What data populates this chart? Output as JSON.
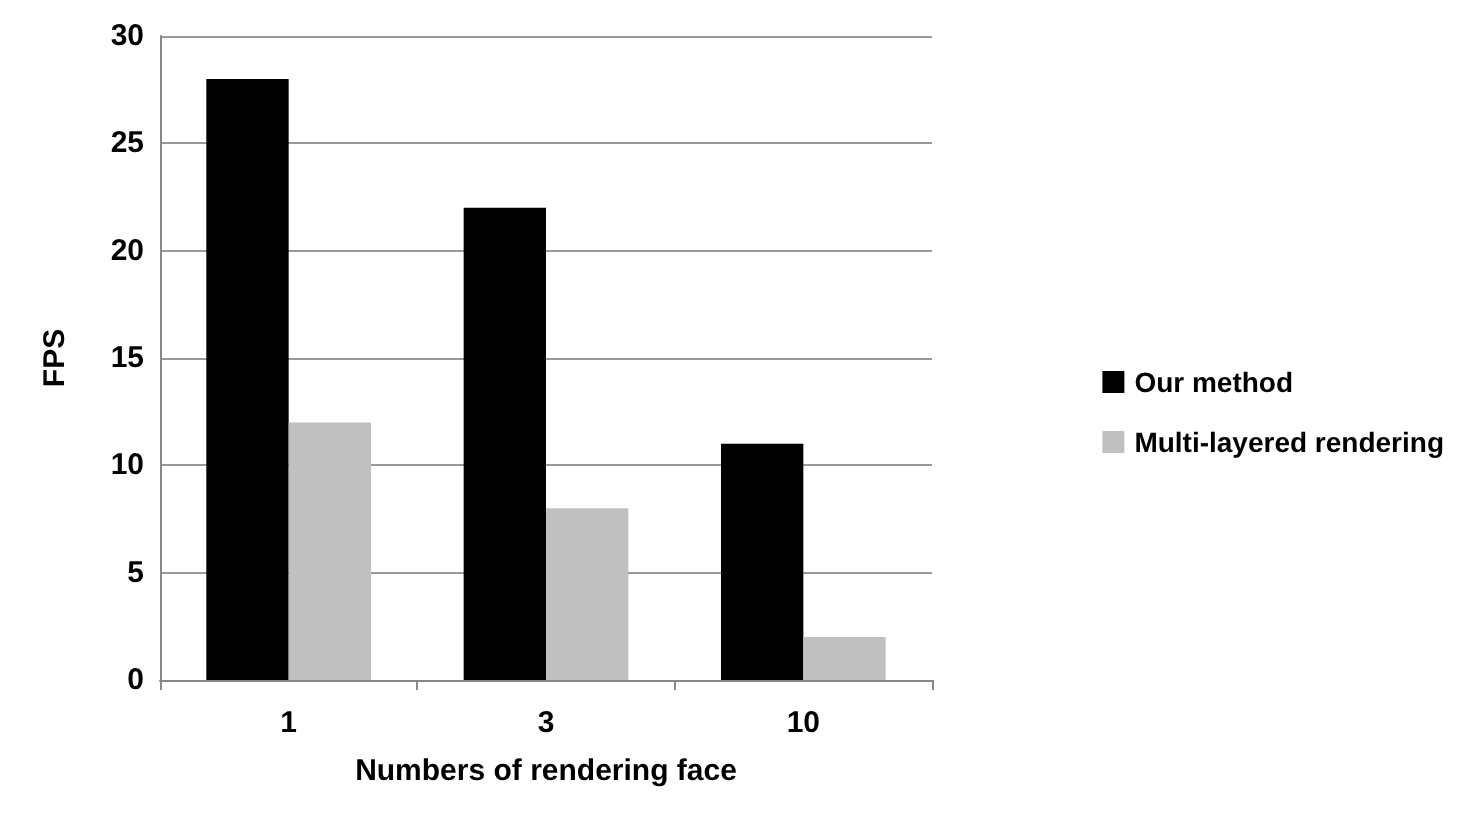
{
  "chart_data": {
    "type": "bar",
    "xlabel": "Numbers of rendering face",
    "ylabel": "FPS",
    "categories": [
      "1",
      "3",
      "10"
    ],
    "series": [
      {
        "name": "Our method",
        "color": "#000000",
        "values": [
          28,
          22,
          11
        ]
      },
      {
        "name": "Multi-layered rendering",
        "color": "#c0c0c0",
        "values": [
          12,
          8,
          2
        ]
      }
    ],
    "ylim": [
      0,
      30
    ],
    "yticks": [
      0,
      5,
      10,
      15,
      20,
      25,
      30
    ],
    "grid": "y",
    "legend": "right"
  }
}
